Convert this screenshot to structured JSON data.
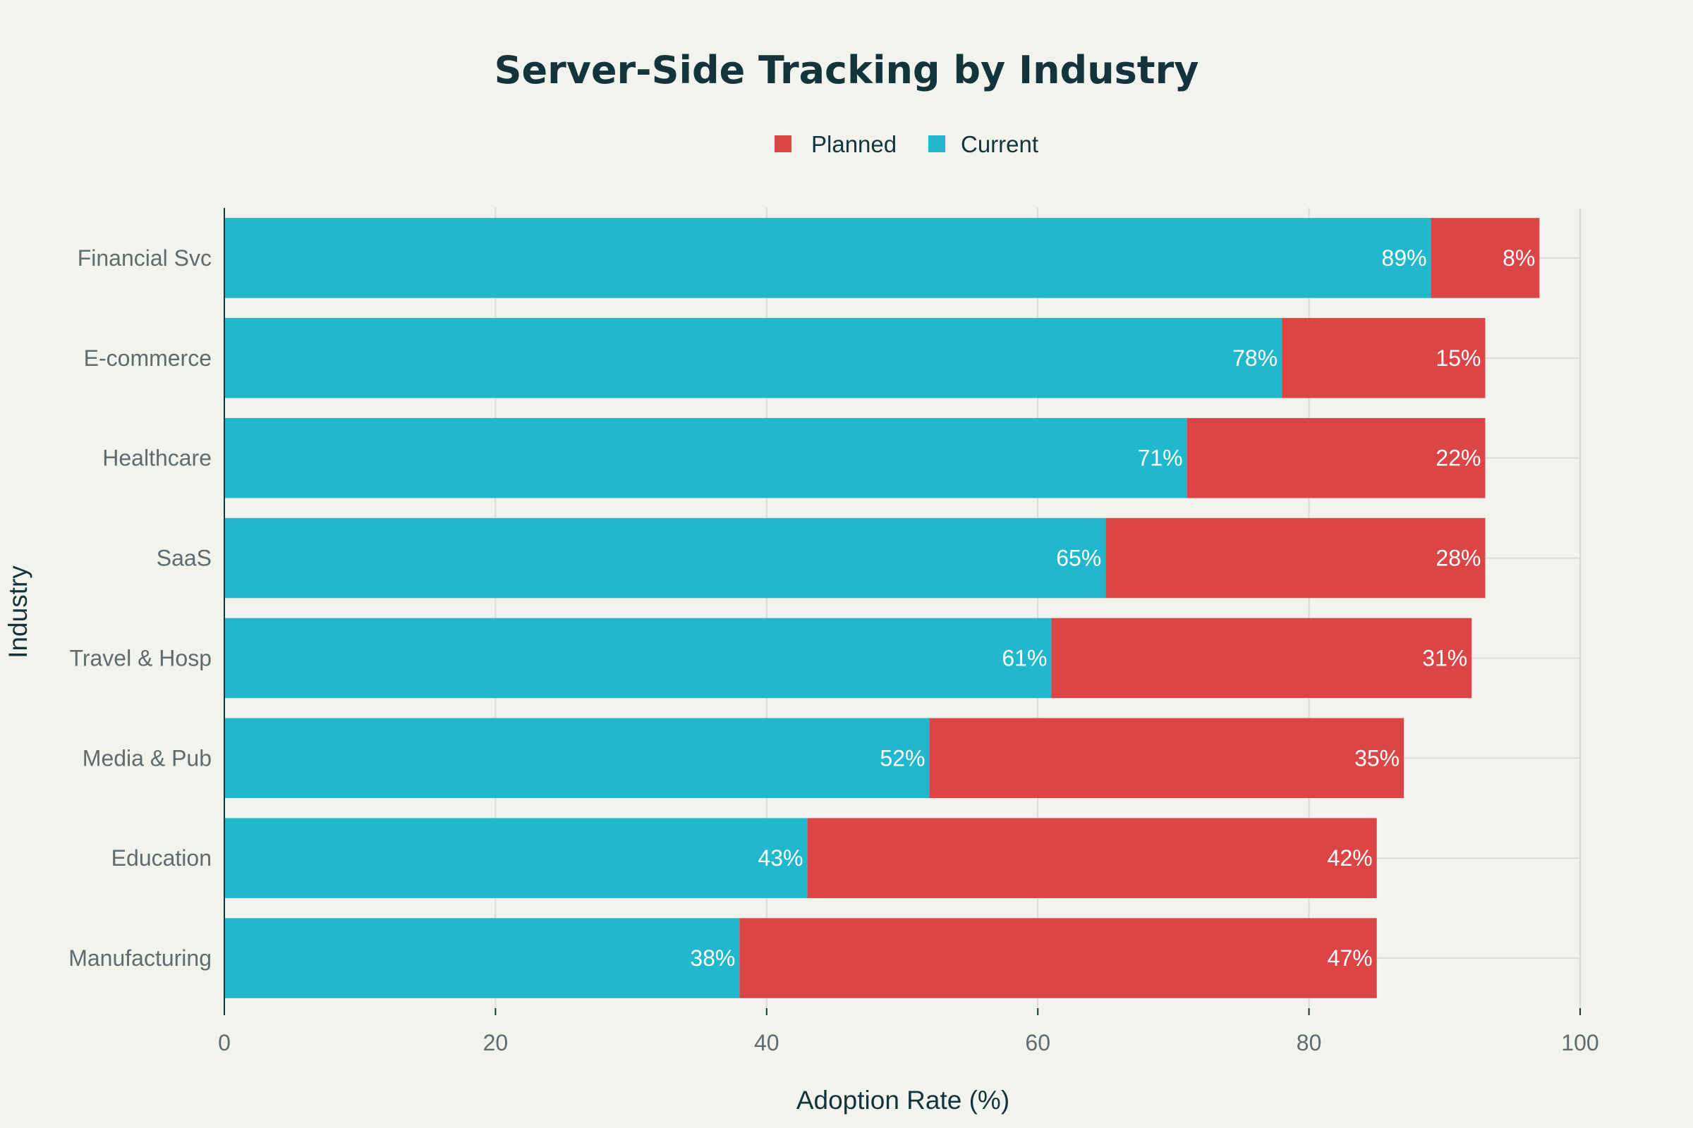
{
  "chart_data": {
    "type": "bar",
    "orientation": "horizontal",
    "stacked": true,
    "title": "Server-Side Tracking by Industry",
    "xlabel": "Adoption Rate (%)",
    "ylabel": "Industry",
    "xlim": [
      0,
      100
    ],
    "xticks": [
      "0",
      "20",
      "40",
      "60",
      "80",
      "100"
    ],
    "legend_position": "top-center",
    "grid": true,
    "categories": [
      "Financial Svc",
      "E-commerce",
      "Healthcare",
      "SaaS",
      "Travel & Hosp",
      "Media & Pub",
      "Education",
      "Manufacturing"
    ],
    "series": [
      {
        "name": "Current",
        "color": "#21b7cc",
        "values": [
          89,
          78,
          71,
          65,
          61,
          52,
          43,
          38
        ],
        "labels": [
          "89%",
          "78%",
          "71%",
          "65%",
          "61%",
          "52%",
          "43%",
          "38%"
        ]
      },
      {
        "name": "Planned",
        "color": "#db4545",
        "values": [
          8,
          15,
          22,
          28,
          31,
          35,
          42,
          47
        ],
        "labels": [
          "8%",
          "15%",
          "22%",
          "28%",
          "31%",
          "35%",
          "42%",
          "47%"
        ]
      }
    ],
    "legend_order": [
      "Planned",
      "Current"
    ]
  }
}
